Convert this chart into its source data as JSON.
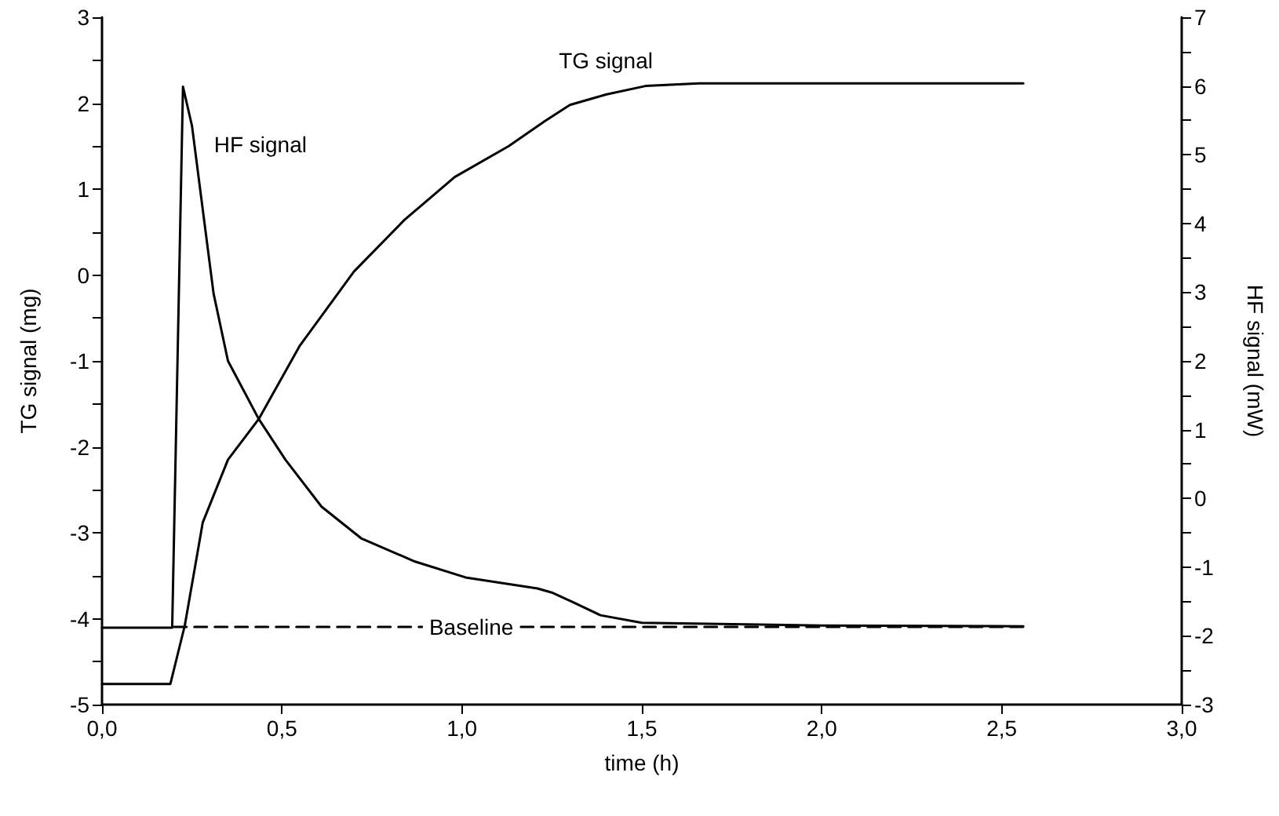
{
  "chart_data": {
    "type": "line",
    "xlabel": "time (h)",
    "ylabel": "TG signal (mg)",
    "y2label": "HF signal (mW)",
    "xlim": [
      0,
      3
    ],
    "xticks": [
      {
        "value": 0,
        "label": "0,0"
      },
      {
        "value": 0.5,
        "label": "0,5"
      },
      {
        "value": 1,
        "label": "1,0"
      },
      {
        "value": 1.5,
        "label": "1,5"
      },
      {
        "value": 2,
        "label": "2,0"
      },
      {
        "value": 2.5,
        "label": "2,5"
      },
      {
        "value": 3,
        "label": "3,0"
      }
    ],
    "ylim": [
      -5,
      3
    ],
    "yticks": [
      -5,
      {
        "value": -4.5,
        "label": null
      },
      -4,
      {
        "value": -3.5,
        "label": null
      },
      -3,
      {
        "value": -2.5,
        "label": null
      },
      -2,
      {
        "value": -1.5,
        "label": null
      },
      -1,
      {
        "value": -0.5,
        "label": null
      },
      0,
      {
        "value": 0.5,
        "label": null
      },
      1,
      {
        "value": 1.5,
        "label": null
      },
      2,
      {
        "value": 2.5,
        "label": null
      },
      3
    ],
    "y2lim": [
      -3,
      7
    ],
    "y2ticks": [
      -3,
      {
        "value": -2.5,
        "label": null
      },
      -2,
      {
        "value": -1.5,
        "label": null
      },
      -1,
      {
        "value": -0.5,
        "label": null
      },
      0,
      {
        "value": 0.5,
        "label": null
      },
      1,
      {
        "value": 1.5,
        "label": null
      },
      2,
      {
        "value": 2.5,
        "label": null
      },
      3,
      {
        "value": 3.5,
        "label": null
      },
      4,
      {
        "value": 4.5,
        "label": null
      },
      5,
      {
        "value": 5.5,
        "label": null
      },
      6,
      {
        "value": 6.5,
        "label": null
      },
      7
    ],
    "grid": false,
    "legend": false,
    "marker": "none",
    "series": [
      {
        "name": "TG signal",
        "color": "#000000",
        "line_style": "solid",
        "x": [
          0,
          0.1,
          0.19,
          0.23,
          0.28,
          0.35,
          0.435,
          0.55,
          0.7,
          0.84,
          0.98,
          1.13,
          1.23,
          1.3,
          1.4,
          1.51,
          1.66,
          2.0,
          2.56
        ],
        "values": [
          -4.76,
          -4.76,
          -4.76,
          -4.08,
          -2.88,
          -2.15,
          -1.68,
          -0.82,
          0.04,
          0.64,
          1.14,
          1.5,
          1.79,
          1.98,
          2.1,
          2.2,
          2.23,
          2.23,
          2.23
        ]
      },
      {
        "name": "HF signal",
        "color": "#000000",
        "line_style": "solid",
        "axis": "y2",
        "x": [
          0,
          0.1,
          0.19,
          0.195,
          0.225,
          0.25,
          0.31,
          0.35,
          0.435,
          0.51,
          0.61,
          0.72,
          0.87,
          1.01,
          1.21,
          1.25,
          1.3,
          1.385,
          1.5,
          2.0,
          2.56
        ],
        "values": [
          -1.88,
          -1.88,
          -1.88,
          -1.88,
          5.99,
          5.42,
          2.98,
          2.0,
          1.16,
          0.56,
          -0.12,
          -0.58,
          -0.92,
          -1.15,
          -1.31,
          -1.37,
          -1.49,
          -1.7,
          -1.81,
          -1.85,
          -1.86
        ]
      },
      {
        "name": "Baseline",
        "color": "#000000",
        "line_style": "dashed",
        "axis": "y2",
        "x": [
          0.2,
          2.56
        ],
        "values": [
          -1.87,
          -1.87
        ]
      }
    ]
  }
}
